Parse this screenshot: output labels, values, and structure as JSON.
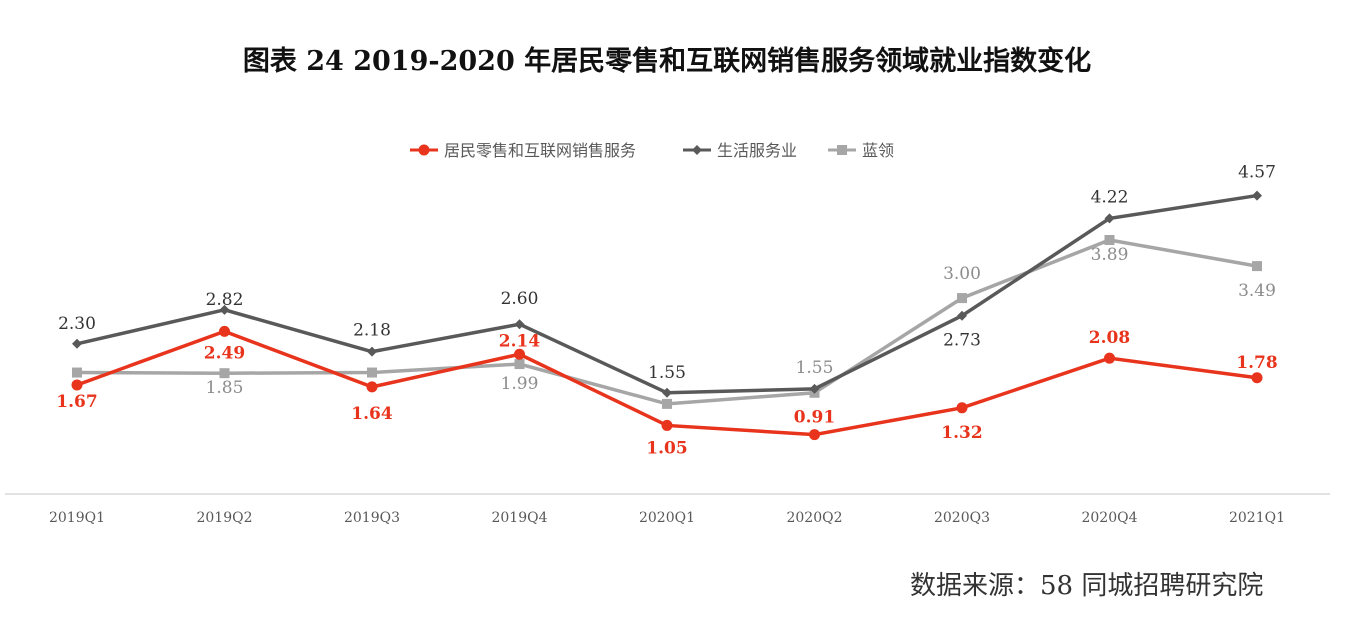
{
  "chart_data": {
    "type": "line",
    "title": "图表  24    2019-2020 年居民零售和互联网销售服务领域就业指数变化",
    "categories": [
      "2019Q1",
      "2019Q2",
      "2019Q3",
      "2019Q4",
      "2020Q1",
      "2020Q2",
      "2020Q3",
      "2020Q4",
      "2021Q1"
    ],
    "series": [
      {
        "name": "居民零售和互联网销售服务",
        "color": "#e8341c",
        "marker": "circle",
        "values": [
          1.67,
          2.49,
          1.64,
          2.14,
          1.05,
          0.91,
          1.32,
          2.08,
          1.78
        ],
        "labels": [
          "1.67",
          "2.49",
          "1.64",
          "2.14",
          "1.05",
          "0.91",
          "1.32",
          "2.08",
          "1.78"
        ]
      },
      {
        "name": "生活服务业",
        "color": "#595959",
        "marker": "diamond",
        "values": [
          2.3,
          2.82,
          2.18,
          2.6,
          1.55,
          1.61,
          2.73,
          4.22,
          4.57
        ],
        "labels": [
          "2.30",
          "2.82",
          "2.18",
          "2.60",
          "1.55",
          null,
          "2.73",
          "4.22",
          "4.57"
        ]
      },
      {
        "name": "蓝领",
        "color": "#a6a6a6",
        "marker": "triangle",
        "values": [
          1.86,
          1.85,
          1.86,
          1.99,
          1.38,
          1.55,
          3.0,
          3.89,
          3.49
        ],
        "labels": [
          null,
          "1.85",
          null,
          "1.99",
          null,
          "1.55",
          "3.00",
          "3.89",
          "3.49"
        ]
      }
    ],
    "ylim": [
      0,
      5
    ],
    "grid": false,
    "legend": "top-center"
  },
  "source": "数据来源：58 同城招聘研究院"
}
